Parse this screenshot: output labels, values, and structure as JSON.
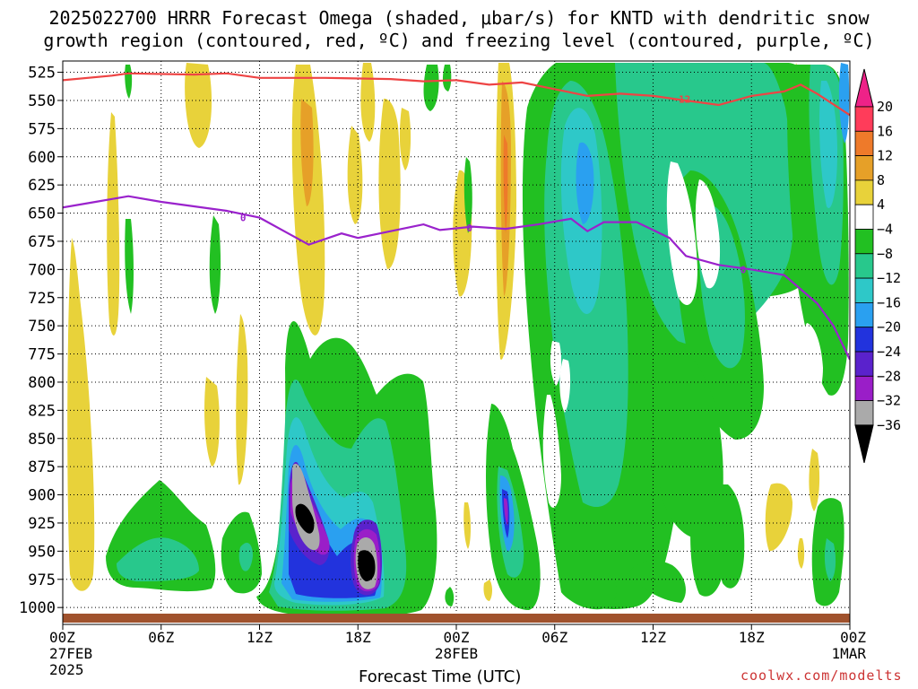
{
  "title_line1": "2025022700 HRRR Forecast Omega (shaded, μbar/s) for KNTD with dendritic snow",
  "title_line2": "growth region (contoured, red, ºC) and freezing level (contoured, purple, ºC)",
  "xlabel": "Forecast Time (UTC)",
  "credit": "coolwx.com/modelts",
  "chart_data": {
    "type": "heatmap",
    "title": "2025022700 HRRR Forecast Omega (shaded, μbar/s) for KNTD with dendritic snow growth region (contoured, red, ºC) and freezing level (contoured, purple, ºC)",
    "xlabel": "Forecast Time (UTC)",
    "ylabel": "",
    "x_range_hours": [
      0,
      48
    ],
    "y_range_hpa": [
      1015,
      515
    ],
    "y_scale": "linear, inverted (pressure)",
    "yticks": [
      525,
      550,
      575,
      600,
      625,
      650,
      675,
      700,
      725,
      750,
      775,
      800,
      825,
      850,
      875,
      900,
      925,
      950,
      975,
      1000
    ],
    "xticks": [
      {
        "hour": 0,
        "label": "00Z",
        "sub1": "27FEB",
        "sub2": "2025"
      },
      {
        "hour": 6,
        "label": "06Z",
        "sub1": "",
        "sub2": ""
      },
      {
        "hour": 12,
        "label": "12Z",
        "sub1": "",
        "sub2": ""
      },
      {
        "hour": 18,
        "label": "18Z",
        "sub1": "",
        "sub2": ""
      },
      {
        "hour": 24,
        "label": "00Z",
        "sub1": "28FEB",
        "sub2": ""
      },
      {
        "hour": 30,
        "label": "06Z",
        "sub1": "",
        "sub2": ""
      },
      {
        "hour": 36,
        "label": "12Z",
        "sub1": "",
        "sub2": ""
      },
      {
        "hour": 42,
        "label": "18Z",
        "sub1": "",
        "sub2": ""
      },
      {
        "hour": 48,
        "label": "00Z",
        "sub1": "1MAR",
        "sub2": ""
      }
    ],
    "grid": "dotted",
    "colorbar": {
      "labels": [
        "20",
        "16",
        "12",
        "8",
        "4",
        "−4",
        "−8",
        "−12",
        "−16",
        "−20",
        "−24",
        "−28",
        "−32",
        "−36"
      ],
      "colors": [
        "#ff3c5a",
        "#ee7a2a",
        "#e6a028",
        "#e8d23a",
        "#ffffff",
        "#22c022",
        "#28c88c",
        "#2ec8c8",
        "#2aa0f0",
        "#2233dd",
        "#5a22cc",
        "#9a1ec8",
        "#aaaaaa"
      ],
      "top_arrow_color": "#ee2288",
      "bottom_arrow_color": "#000000"
    },
    "surface_color": "#a0522d",
    "red_contour": {
      "label": "-12",
      "color": "#ee4444",
      "points": [
        [
          0,
          532
        ],
        [
          3,
          528
        ],
        [
          4,
          526
        ],
        [
          8,
          527
        ],
        [
          10,
          526
        ],
        [
          12,
          530
        ],
        [
          16,
          530
        ],
        [
          20,
          531
        ],
        [
          22,
          533
        ],
        [
          24,
          532
        ],
        [
          26,
          536
        ],
        [
          28,
          534
        ],
        [
          30,
          540
        ],
        [
          32,
          546
        ],
        [
          34,
          544
        ],
        [
          36,
          546
        ],
        [
          38,
          550
        ],
        [
          40,
          554
        ],
        [
          42,
          546
        ],
        [
          44,
          542
        ],
        [
          45,
          536
        ],
        [
          46,
          544
        ],
        [
          48,
          563
        ]
      ]
    },
    "purple_contour": {
      "label": "0",
      "color": "#9a22cc",
      "points": [
        [
          0,
          645
        ],
        [
          2,
          640
        ],
        [
          4,
          635
        ],
        [
          6,
          640
        ],
        [
          8,
          644
        ],
        [
          10,
          648
        ],
        [
          12,
          654
        ],
        [
          14,
          670
        ],
        [
          15,
          678
        ],
        [
          17,
          668
        ],
        [
          18,
          672
        ],
        [
          20,
          666
        ],
        [
          22,
          660
        ],
        [
          23,
          665
        ],
        [
          25,
          662
        ],
        [
          27,
          664
        ],
        [
          29,
          660
        ],
        [
          31,
          655
        ],
        [
          32,
          666
        ],
        [
          33,
          658
        ],
        [
          35,
          658
        ],
        [
          37,
          672
        ],
        [
          38,
          688
        ],
        [
          40,
          696
        ],
        [
          42,
          700
        ],
        [
          44,
          705
        ],
        [
          46,
          730
        ],
        [
          47,
          750
        ],
        [
          48,
          780
        ]
      ]
    }
  }
}
